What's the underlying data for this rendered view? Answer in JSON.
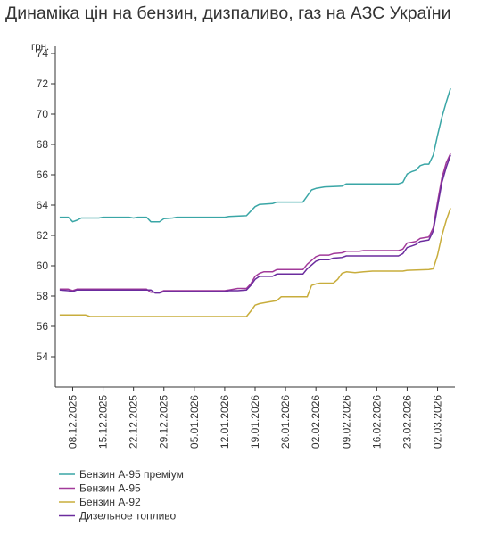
{
  "title": "Динаміка цін на бензин, дизпаливо, газ на АЗС України",
  "chart_data": {
    "type": "line",
    "title": "Динаміка цін на бензин, дизпаливо, газ на АЗС України",
    "ylabel": "грн.",
    "xlabel": "",
    "ylim": [
      52,
      74
    ],
    "yticks": [
      54,
      56,
      58,
      60,
      62,
      64,
      66,
      68,
      70,
      72,
      74
    ],
    "xlim": [
      "2025-12-04",
      "2026-03-06"
    ],
    "xticks": [
      "08.12.2025",
      "15.12.2025",
      "22.12.2025",
      "29.12.2025",
      "05.01.2026",
      "12.01.2026",
      "19.01.2026",
      "26.01.2026",
      "02.02.2026",
      "09.02.2026",
      "16.02.2026",
      "23.02.2026",
      "02.03.2026"
    ],
    "grid": false,
    "legend_position": "bottom-left",
    "series": [
      {
        "name": "Бензин А-95 преміум",
        "color": "#3aa6a6",
        "points": [
          [
            "2025-12-05",
            63.2
          ],
          [
            "2025-12-07",
            63.2
          ],
          [
            "2025-12-08",
            62.9
          ],
          [
            "2025-12-09",
            63.0
          ],
          [
            "2025-12-10",
            63.15
          ],
          [
            "2025-12-14",
            63.15
          ],
          [
            "2025-12-15",
            63.2
          ],
          [
            "2025-12-21",
            63.2
          ],
          [
            "2025-12-22",
            63.15
          ],
          [
            "2025-12-23",
            63.2
          ],
          [
            "2025-12-25",
            63.2
          ],
          [
            "2025-12-26",
            62.9
          ],
          [
            "2025-12-28",
            62.9
          ],
          [
            "2025-12-29",
            63.1
          ],
          [
            "2025-12-31",
            63.15
          ],
          [
            "2026-01-01",
            63.2
          ],
          [
            "2026-01-12",
            63.2
          ],
          [
            "2026-01-13",
            63.25
          ],
          [
            "2026-01-17",
            63.3
          ],
          [
            "2026-01-19",
            63.9
          ],
          [
            "2026-01-20",
            64.05
          ],
          [
            "2026-01-23",
            64.1
          ],
          [
            "2026-01-24",
            64.2
          ],
          [
            "2026-01-30",
            64.2
          ],
          [
            "2026-02-01",
            65.0
          ],
          [
            "2026-02-02",
            65.1
          ],
          [
            "2026-02-04",
            65.2
          ],
          [
            "2026-02-08",
            65.25
          ],
          [
            "2026-02-09",
            65.4
          ],
          [
            "2026-02-21",
            65.4
          ],
          [
            "2026-02-22",
            65.5
          ],
          [
            "2026-02-23",
            66.05
          ],
          [
            "2026-02-24",
            66.2
          ],
          [
            "2026-02-25",
            66.3
          ],
          [
            "2026-02-26",
            66.6
          ],
          [
            "2026-02-27",
            66.7
          ],
          [
            "2026-02-28",
            66.7
          ],
          [
            "2026-03-01",
            67.3
          ],
          [
            "2026-03-02",
            68.6
          ],
          [
            "2026-03-03",
            69.8
          ],
          [
            "2026-03-04",
            70.8
          ],
          [
            "2026-03-05",
            71.7
          ]
        ]
      },
      {
        "name": "Бензин А-95",
        "color": "#a23a9a",
        "points": [
          [
            "2025-12-05",
            58.45
          ],
          [
            "2025-12-07",
            58.45
          ],
          [
            "2025-12-08",
            58.35
          ],
          [
            "2025-12-09",
            58.45
          ],
          [
            "2025-12-25",
            58.45
          ],
          [
            "2025-12-26",
            58.25
          ],
          [
            "2025-12-28",
            58.25
          ],
          [
            "2025-12-29",
            58.35
          ],
          [
            "2026-01-01",
            58.35
          ],
          [
            "2026-01-12",
            58.35
          ],
          [
            "2026-01-13",
            58.4
          ],
          [
            "2026-01-15",
            58.5
          ],
          [
            "2026-01-17",
            58.5
          ],
          [
            "2026-01-18",
            58.8
          ],
          [
            "2026-01-19",
            59.3
          ],
          [
            "2026-01-20",
            59.5
          ],
          [
            "2026-01-21",
            59.6
          ],
          [
            "2026-01-23",
            59.6
          ],
          [
            "2026-01-24",
            59.75
          ],
          [
            "2026-01-30",
            59.75
          ],
          [
            "2026-01-31",
            60.1
          ],
          [
            "2026-02-02",
            60.6
          ],
          [
            "2026-02-03",
            60.7
          ],
          [
            "2026-02-05",
            60.7
          ],
          [
            "2026-02-06",
            60.8
          ],
          [
            "2026-02-08",
            60.85
          ],
          [
            "2026-02-09",
            60.95
          ],
          [
            "2026-02-12",
            60.95
          ],
          [
            "2026-02-13",
            61.0
          ],
          [
            "2026-02-21",
            61.0
          ],
          [
            "2026-02-22",
            61.1
          ],
          [
            "2026-02-23",
            61.5
          ],
          [
            "2026-02-24",
            61.55
          ],
          [
            "2026-02-25",
            61.6
          ],
          [
            "2026-02-26",
            61.8
          ],
          [
            "2026-02-28",
            61.9
          ],
          [
            "2026-03-01",
            62.5
          ],
          [
            "2026-03-02",
            64.2
          ],
          [
            "2026-03-03",
            65.8
          ],
          [
            "2026-03-04",
            66.8
          ],
          [
            "2026-03-05",
            67.4
          ]
        ]
      },
      {
        "name": "Бензин А-92",
        "color": "#c8ad3c",
        "points": [
          [
            "2025-12-05",
            56.75
          ],
          [
            "2025-12-11",
            56.75
          ],
          [
            "2025-12-12",
            56.65
          ],
          [
            "2026-01-17",
            56.65
          ],
          [
            "2026-01-18",
            57.0
          ],
          [
            "2026-01-19",
            57.4
          ],
          [
            "2026-01-20",
            57.5
          ],
          [
            "2026-01-22",
            57.6
          ],
          [
            "2026-01-24",
            57.7
          ],
          [
            "2026-01-25",
            57.95
          ],
          [
            "2026-01-31",
            57.95
          ],
          [
            "2026-02-01",
            58.7
          ],
          [
            "2026-02-02",
            58.8
          ],
          [
            "2026-02-03",
            58.85
          ],
          [
            "2026-02-06",
            58.85
          ],
          [
            "2026-02-07",
            59.1
          ],
          [
            "2026-02-08",
            59.5
          ],
          [
            "2026-02-09",
            59.6
          ],
          [
            "2026-02-11",
            59.55
          ],
          [
            "2026-02-13",
            59.6
          ],
          [
            "2026-02-15",
            59.65
          ],
          [
            "2026-02-22",
            59.65
          ],
          [
            "2026-02-23",
            59.7
          ],
          [
            "2026-02-28",
            59.75
          ],
          [
            "2026-03-01",
            59.8
          ],
          [
            "2026-03-02",
            60.7
          ],
          [
            "2026-03-03",
            62.0
          ],
          [
            "2026-03-04",
            63.0
          ],
          [
            "2026-03-05",
            63.8
          ]
        ]
      },
      {
        "name": "Дизельное топливо",
        "color": "#6b2c9e",
        "points": [
          [
            "2025-12-05",
            58.4
          ],
          [
            "2025-12-07",
            58.35
          ],
          [
            "2025-12-08",
            58.3
          ],
          [
            "2025-12-09",
            58.4
          ],
          [
            "2025-12-26",
            58.4
          ],
          [
            "2025-12-27",
            58.2
          ],
          [
            "2025-12-28",
            58.2
          ],
          [
            "2025-12-29",
            58.3
          ],
          [
            "2026-01-12",
            58.3
          ],
          [
            "2026-01-13",
            58.35
          ],
          [
            "2026-01-15",
            58.35
          ],
          [
            "2026-01-17",
            58.4
          ],
          [
            "2026-01-18",
            58.7
          ],
          [
            "2026-01-19",
            59.1
          ],
          [
            "2026-01-20",
            59.3
          ],
          [
            "2026-01-23",
            59.3
          ],
          [
            "2026-01-24",
            59.45
          ],
          [
            "2026-01-30",
            59.45
          ],
          [
            "2026-01-31",
            59.8
          ],
          [
            "2026-02-02",
            60.3
          ],
          [
            "2026-02-03",
            60.4
          ],
          [
            "2026-02-05",
            60.4
          ],
          [
            "2026-02-06",
            60.5
          ],
          [
            "2026-02-08",
            60.55
          ],
          [
            "2026-02-09",
            60.65
          ],
          [
            "2026-02-21",
            60.65
          ],
          [
            "2026-02-22",
            60.8
          ],
          [
            "2026-02-23",
            61.2
          ],
          [
            "2026-02-24",
            61.3
          ],
          [
            "2026-02-25",
            61.4
          ],
          [
            "2026-02-26",
            61.6
          ],
          [
            "2026-02-28",
            61.7
          ],
          [
            "2026-03-01",
            62.3
          ],
          [
            "2026-03-02",
            63.9
          ],
          [
            "2026-03-03",
            65.5
          ],
          [
            "2026-03-04",
            66.5
          ],
          [
            "2026-03-05",
            67.3
          ]
        ]
      }
    ]
  }
}
